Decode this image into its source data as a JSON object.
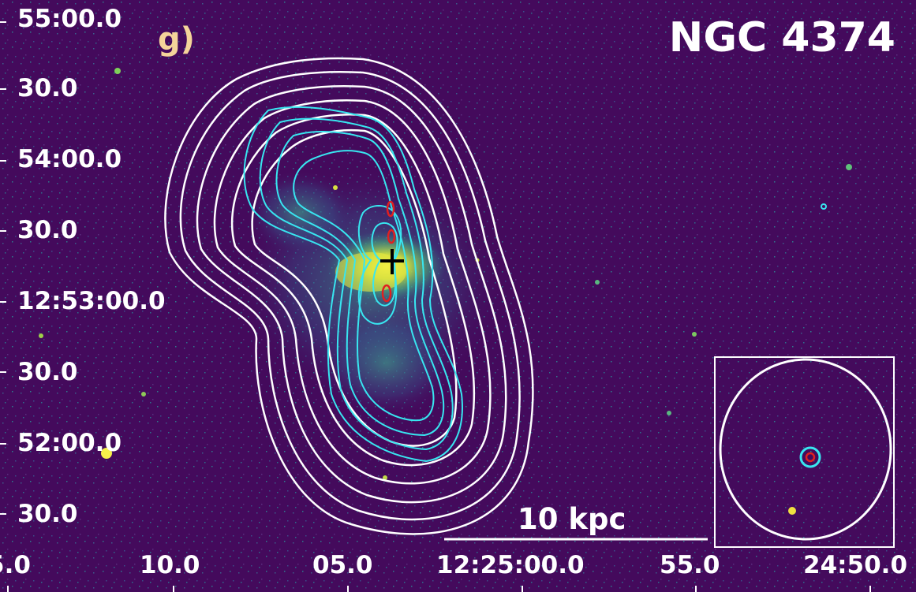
{
  "panel_label": "g)",
  "object_name": "NGC 4374",
  "scale_bar": {
    "label": "10 kpc"
  },
  "dec_ticks": [
    "55:00.0",
    "30.0",
    "54:00.0",
    "30.0",
    "12:53:00.0",
    "30.0",
    "52:00.0",
    "30.0"
  ],
  "ra_ticks": [
    "5.0",
    "10.0",
    "05.0",
    "12:25:00.0",
    "55.0",
    "24:50.0"
  ],
  "colors": {
    "background": "#440a5c",
    "emission_bright": "#f0e838",
    "emission_mid": "#3fae7e",
    "contour_radio_low": "#ffffff",
    "contour_radio_high": "#38e6f0",
    "contour_core": "#e02020",
    "center_marker": "#000000"
  },
  "icons": {
    "center_marker": "cross-icon"
  },
  "inset": {
    "description_visible": ""
  }
}
